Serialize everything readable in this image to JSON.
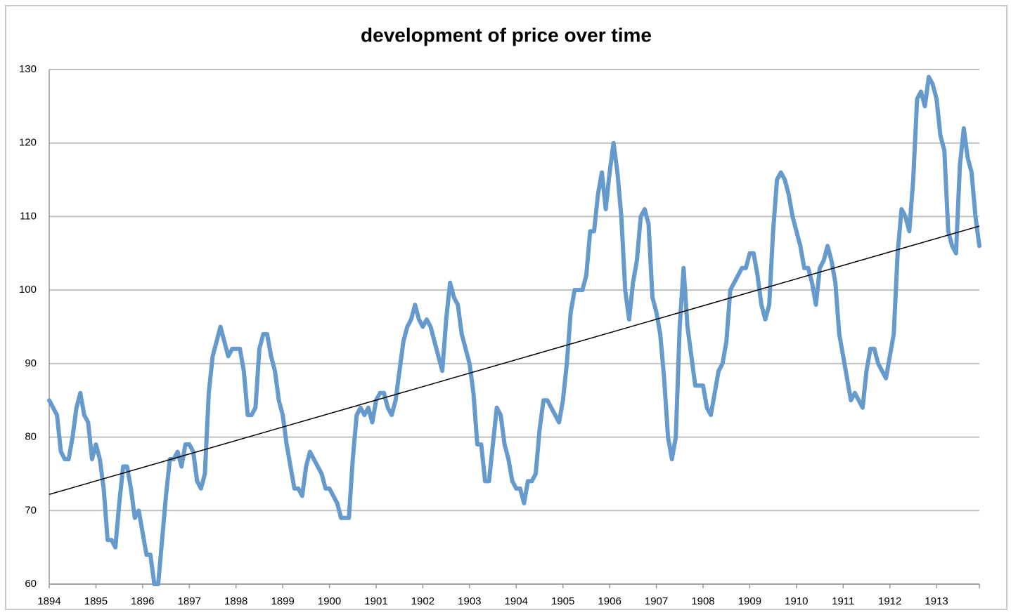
{
  "chart_data": {
    "type": "line",
    "title": "development of price over time",
    "categories": [
      "1894",
      null,
      null,
      null,
      null,
      null,
      null,
      null,
      null,
      null,
      null,
      null,
      "1895",
      null,
      null,
      null,
      null,
      null,
      null,
      null,
      null,
      null,
      null,
      null,
      "1896",
      null,
      null,
      null,
      null,
      null,
      null,
      null,
      null,
      null,
      null,
      null,
      "1897",
      null,
      null,
      null,
      null,
      null,
      null,
      null,
      null,
      null,
      null,
      null,
      "1898",
      null,
      null,
      null,
      null,
      null,
      null,
      null,
      null,
      null,
      null,
      null,
      "1899",
      null,
      null,
      null,
      null,
      null,
      null,
      null,
      null,
      null,
      null,
      null,
      "1900",
      null,
      null,
      null,
      null,
      null,
      null,
      null,
      null,
      null,
      null,
      null,
      "1901",
      null,
      null,
      null,
      null,
      null,
      null,
      null,
      null,
      null,
      null,
      null,
      "1902",
      null,
      null,
      null,
      null,
      null,
      null,
      null,
      null,
      null,
      null,
      null,
      "1903",
      null,
      null,
      null,
      null,
      null,
      null,
      null,
      null,
      null,
      null,
      null,
      "1904",
      null,
      null,
      null,
      null,
      null,
      null,
      null,
      null,
      null,
      null,
      null,
      "1905",
      null,
      null,
      null,
      null,
      null,
      null,
      null,
      null,
      null,
      null,
      null,
      "1906",
      null,
      null,
      null,
      null,
      null,
      null,
      null,
      null,
      null,
      null,
      null,
      "1907",
      null,
      null,
      null,
      null,
      null,
      null,
      null,
      null,
      null,
      null,
      null,
      "1908",
      null,
      null,
      null,
      null,
      null,
      null,
      null,
      null,
      null,
      null,
      null,
      "1909",
      null,
      null,
      null,
      null,
      null,
      null,
      null,
      null,
      null,
      null,
      null,
      "1910",
      null,
      null,
      null,
      null,
      null,
      null,
      null,
      null,
      null,
      null,
      null,
      "1911",
      null,
      null,
      null,
      null,
      null,
      null,
      null,
      null,
      null,
      null,
      null,
      "1912",
      null,
      null,
      null,
      null,
      null,
      null,
      null,
      null,
      null,
      null,
      null,
      "1913",
      null,
      null,
      null,
      null,
      null,
      null,
      null,
      null,
      null,
      null,
      null
    ],
    "series": [
      {
        "color": "#6699cc",
        "values": [
          85,
          84,
          83,
          78,
          77,
          77,
          80,
          84,
          86,
          83,
          82,
          77,
          79,
          77,
          73,
          66,
          66,
          65,
          71,
          76,
          76,
          73,
          69,
          70,
          67,
          64,
          64,
          60,
          60,
          66,
          72,
          77,
          77,
          78,
          76,
          79,
          79,
          78,
          74,
          73,
          75,
          86,
          91,
          93,
          95,
          93,
          91,
          92,
          92,
          92,
          89,
          83,
          83,
          84,
          92,
          94,
          94,
          91,
          89,
          85,
          83,
          79,
          76,
          73,
          73,
          72,
          76,
          78,
          77,
          76,
          75,
          73,
          73,
          72,
          71,
          69,
          69,
          69,
          77,
          83,
          84,
          83,
          84,
          82,
          85,
          86,
          86,
          84,
          83,
          85,
          89,
          93,
          95,
          96,
          98,
          96,
          95,
          96,
          95,
          93,
          91,
          89,
          96,
          101,
          99,
          98,
          94,
          92,
          90,
          86,
          79,
          79,
          74,
          74,
          79,
          84,
          83,
          79,
          77,
          74,
          73,
          73,
          71,
          74,
          74,
          75,
          81,
          85,
          85,
          84,
          83,
          82,
          85,
          90,
          97,
          100,
          100,
          100,
          102,
          108,
          108,
          113,
          116,
          111,
          116,
          120,
          116,
          110,
          100,
          96,
          101,
          104,
          110,
          111,
          109,
          99,
          97,
          94,
          88,
          80,
          77,
          80,
          95,
          103,
          95,
          91,
          87,
          87,
          87,
          84,
          83,
          86,
          89,
          90,
          93,
          100,
          101,
          102,
          103,
          103,
          105,
          105,
          102,
          98,
          96,
          98,
          108,
          115,
          116,
          115,
          113,
          110,
          108,
          106,
          103,
          103,
          101,
          98,
          103,
          104,
          106,
          104,
          101,
          94,
          91,
          88,
          85,
          86,
          85,
          84,
          89,
          92,
          92,
          90,
          89,
          88,
          91,
          94,
          105,
          111,
          110,
          108,
          115,
          126,
          127,
          125,
          129,
          128,
          126,
          121,
          119,
          108,
          106,
          105,
          117,
          122,
          118,
          116,
          110,
          106
        ]
      }
    ],
    "trendline": {
      "color": "#000000",
      "values": [
        72.2,
        108.7
      ]
    },
    "ylim": [
      60,
      130
    ],
    "yticks": [
      60,
      70,
      80,
      90,
      100,
      110,
      120,
      130
    ],
    "grid": true
  }
}
